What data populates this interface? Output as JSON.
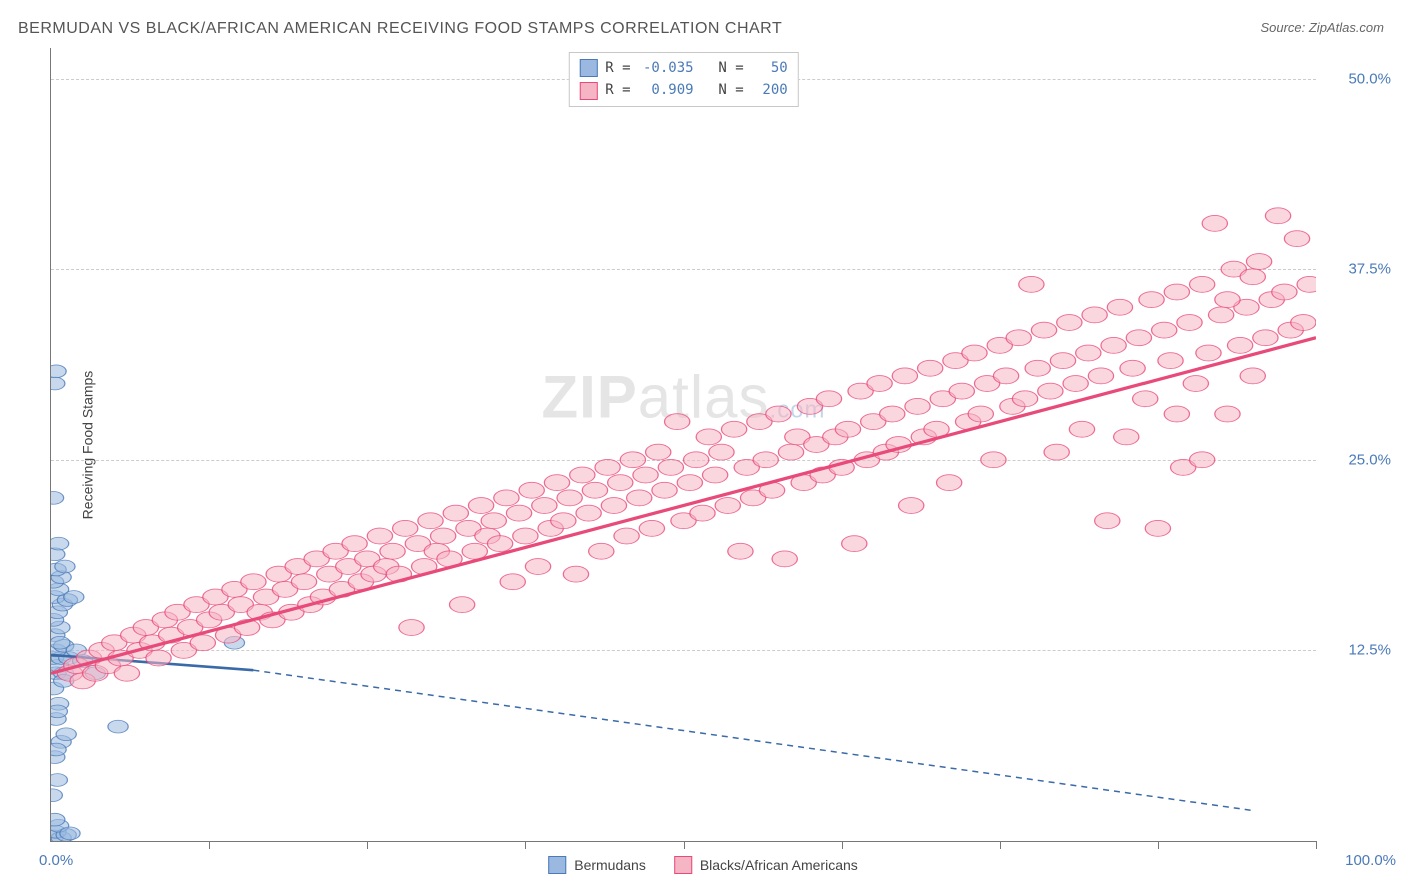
{
  "title": "BERMUDAN VS BLACK/AFRICAN AMERICAN RECEIVING FOOD STAMPS CORRELATION CHART",
  "source_prefix": "Source: ",
  "source_name": "ZipAtlas.com",
  "watermark": {
    "brand": "ZIP",
    "suffix": "atlas",
    "tld": ".com"
  },
  "chart": {
    "type": "scatter",
    "background_color": "#ffffff",
    "grid_color": "#cccccc",
    "axis_color": "#777777",
    "tick_label_color": "#4a7ab8",
    "ylabel": "Receiving Food Stamps",
    "ylabel_fontsize": 14,
    "xlim": [
      0,
      100
    ],
    "ylim": [
      0,
      52
    ],
    "x_origin_label": "0.0%",
    "x_max_label": "100.0%",
    "x_tick_positions": [
      12.5,
      25,
      37.5,
      50,
      62.5,
      75,
      87.5,
      100
    ],
    "y_ticks": [
      {
        "value": 12.5,
        "label": "12.5%"
      },
      {
        "value": 25.0,
        "label": "25.0%"
      },
      {
        "value": 37.5,
        "label": "37.5%"
      },
      {
        "value": 50.0,
        "label": "50.0%"
      }
    ],
    "series": [
      {
        "id": "bermudans",
        "label": "Bermudans",
        "fill_color": "#9bb9e0",
        "stroke_color": "#4a7ab8",
        "marker_opacity": 0.55,
        "marker_radius": 8,
        "correlation_R": "-0.035",
        "correlation_N": "50",
        "trend": {
          "solid_from": [
            0,
            12.2
          ],
          "solid_to": [
            16,
            11.2
          ],
          "dash_from": [
            16,
            11.2
          ],
          "dash_to": [
            95,
            2.0
          ],
          "line_color": "#3a6aa8",
          "line_width": 2
        },
        "points": [
          [
            0.2,
            0.3
          ],
          [
            0.8,
            0.2
          ],
          [
            0.4,
            0.6
          ],
          [
            1.2,
            0.4
          ],
          [
            0.6,
            1.0
          ],
          [
            1.5,
            0.5
          ],
          [
            0.3,
            1.4
          ],
          [
            0.1,
            3.0
          ],
          [
            0.5,
            4.0
          ],
          [
            0.3,
            5.5
          ],
          [
            0.8,
            6.5
          ],
          [
            1.2,
            7.0
          ],
          [
            0.4,
            8.0
          ],
          [
            5.3,
            7.5
          ],
          [
            0.6,
            9.0
          ],
          [
            0.2,
            10.0
          ],
          [
            0.4,
            11.0
          ],
          [
            1.0,
            11.0
          ],
          [
            3.5,
            11.0
          ],
          [
            0.6,
            11.5
          ],
          [
            0.2,
            12.0
          ],
          [
            0.8,
            12.0
          ],
          [
            1.4,
            12.0
          ],
          [
            0.4,
            12.5
          ],
          [
            1.0,
            12.8
          ],
          [
            0.3,
            13.5
          ],
          [
            0.7,
            14.0
          ],
          [
            0.2,
            14.5
          ],
          [
            0.5,
            15.0
          ],
          [
            0.9,
            15.5
          ],
          [
            0.3,
            16.0
          ],
          [
            1.3,
            15.8
          ],
          [
            0.6,
            16.5
          ],
          [
            1.8,
            16.0
          ],
          [
            0.2,
            17.0
          ],
          [
            0.8,
            17.3
          ],
          [
            0.4,
            17.8
          ],
          [
            1.1,
            18.0
          ],
          [
            0.3,
            18.8
          ],
          [
            14.5,
            13.0
          ],
          [
            0.6,
            19.5
          ],
          [
            0.2,
            22.5
          ],
          [
            0.3,
            30.0
          ],
          [
            0.4,
            30.8
          ],
          [
            2.0,
            12.5
          ],
          [
            2.5,
            11.8
          ],
          [
            0.5,
            8.5
          ],
          [
            1.0,
            10.5
          ],
          [
            0.7,
            13.0
          ],
          [
            0.4,
            6.0
          ]
        ]
      },
      {
        "id": "black_african_american",
        "label": "Blacks/African Americans",
        "fill_color": "#f5b5c4",
        "stroke_color": "#e84a7a",
        "marker_opacity": 0.55,
        "marker_radius": 10,
        "correlation_R": "0.909",
        "correlation_N": "200",
        "trend": {
          "solid_from": [
            0,
            11.0
          ],
          "solid_to": [
            100,
            33.0
          ],
          "line_color": "#e84a7a",
          "line_width": 2.5
        },
        "points": [
          [
            1.5,
            11.0
          ],
          [
            2.0,
            11.5
          ],
          [
            2.5,
            10.5
          ],
          [
            3.0,
            12.0
          ],
          [
            3.5,
            11.0
          ],
          [
            4.0,
            12.5
          ],
          [
            4.5,
            11.5
          ],
          [
            5.0,
            13.0
          ],
          [
            5.5,
            12.0
          ],
          [
            6.0,
            11.0
          ],
          [
            6.5,
            13.5
          ],
          [
            7.0,
            12.5
          ],
          [
            7.5,
            14.0
          ],
          [
            8.0,
            13.0
          ],
          [
            8.5,
            12.0
          ],
          [
            9.0,
            14.5
          ],
          [
            9.5,
            13.5
          ],
          [
            10.0,
            15.0
          ],
          [
            10.5,
            12.5
          ],
          [
            11.0,
            14.0
          ],
          [
            11.5,
            15.5
          ],
          [
            12.0,
            13.0
          ],
          [
            12.5,
            14.5
          ],
          [
            13.0,
            16.0
          ],
          [
            13.5,
            15.0
          ],
          [
            14.0,
            13.5
          ],
          [
            14.5,
            16.5
          ],
          [
            15.0,
            15.5
          ],
          [
            15.5,
            14.0
          ],
          [
            16.0,
            17.0
          ],
          [
            16.5,
            15.0
          ],
          [
            17.0,
            16.0
          ],
          [
            17.5,
            14.5
          ],
          [
            18.0,
            17.5
          ],
          [
            18.5,
            16.5
          ],
          [
            19.0,
            15.0
          ],
          [
            19.5,
            18.0
          ],
          [
            20.0,
            17.0
          ],
          [
            20.5,
            15.5
          ],
          [
            21.0,
            18.5
          ],
          [
            21.5,
            16.0
          ],
          [
            22.0,
            17.5
          ],
          [
            22.5,
            19.0
          ],
          [
            23.0,
            16.5
          ],
          [
            23.5,
            18.0
          ],
          [
            24.0,
            19.5
          ],
          [
            24.5,
            17.0
          ],
          [
            25.0,
            18.5
          ],
          [
            25.5,
            17.5
          ],
          [
            26.0,
            20.0
          ],
          [
            26.5,
            18.0
          ],
          [
            27.0,
            19.0
          ],
          [
            27.5,
            17.5
          ],
          [
            28.0,
            20.5
          ],
          [
            28.5,
            14.0
          ],
          [
            29.0,
            19.5
          ],
          [
            29.5,
            18.0
          ],
          [
            30.0,
            21.0
          ],
          [
            30.5,
            19.0
          ],
          [
            31.0,
            20.0
          ],
          [
            31.5,
            18.5
          ],
          [
            32.0,
            21.5
          ],
          [
            32.5,
            15.5
          ],
          [
            33.0,
            20.5
          ],
          [
            33.5,
            19.0
          ],
          [
            34.0,
            22.0
          ],
          [
            34.5,
            20.0
          ],
          [
            35.0,
            21.0
          ],
          [
            35.5,
            19.5
          ],
          [
            36.0,
            22.5
          ],
          [
            36.5,
            17.0
          ],
          [
            37.0,
            21.5
          ],
          [
            37.5,
            20.0
          ],
          [
            38.0,
            23.0
          ],
          [
            38.5,
            18.0
          ],
          [
            39.0,
            22.0
          ],
          [
            39.5,
            20.5
          ],
          [
            40.0,
            23.5
          ],
          [
            40.5,
            21.0
          ],
          [
            41.0,
            22.5
          ],
          [
            41.5,
            17.5
          ],
          [
            42.0,
            24.0
          ],
          [
            42.5,
            21.5
          ],
          [
            43.0,
            23.0
          ],
          [
            43.5,
            19.0
          ],
          [
            44.0,
            24.5
          ],
          [
            44.5,
            22.0
          ],
          [
            45.0,
            23.5
          ],
          [
            45.5,
            20.0
          ],
          [
            46.0,
            25.0
          ],
          [
            46.5,
            22.5
          ],
          [
            47.0,
            24.0
          ],
          [
            47.5,
            20.5
          ],
          [
            48.0,
            25.5
          ],
          [
            48.5,
            23.0
          ],
          [
            49.0,
            24.5
          ],
          [
            49.5,
            27.5
          ],
          [
            50.0,
            21.0
          ],
          [
            50.5,
            23.5
          ],
          [
            51.0,
            25.0
          ],
          [
            51.5,
            21.5
          ],
          [
            52.0,
            26.5
          ],
          [
            52.5,
            24.0
          ],
          [
            53.0,
            25.5
          ],
          [
            53.5,
            22.0
          ],
          [
            54.0,
            27.0
          ],
          [
            54.5,
            19.0
          ],
          [
            55.0,
            24.5
          ],
          [
            55.5,
            22.5
          ],
          [
            56.0,
            27.5
          ],
          [
            56.5,
            25.0
          ],
          [
            57.0,
            23.0
          ],
          [
            57.5,
            28.0
          ],
          [
            58.0,
            18.5
          ],
          [
            58.5,
            25.5
          ],
          [
            59.0,
            26.5
          ],
          [
            59.5,
            23.5
          ],
          [
            60.0,
            28.5
          ],
          [
            60.5,
            26.0
          ],
          [
            61.0,
            24.0
          ],
          [
            61.5,
            29.0
          ],
          [
            62.0,
            26.5
          ],
          [
            62.5,
            24.5
          ],
          [
            63.0,
            27.0
          ],
          [
            63.5,
            19.5
          ],
          [
            64.0,
            29.5
          ],
          [
            64.5,
            25.0
          ],
          [
            65.0,
            27.5
          ],
          [
            65.5,
            30.0
          ],
          [
            66.0,
            25.5
          ],
          [
            66.5,
            28.0
          ],
          [
            67.0,
            26.0
          ],
          [
            67.5,
            30.5
          ],
          [
            68.0,
            22.0
          ],
          [
            68.5,
            28.5
          ],
          [
            69.0,
            26.5
          ],
          [
            69.5,
            31.0
          ],
          [
            70.0,
            27.0
          ],
          [
            70.5,
            29.0
          ],
          [
            71.0,
            23.5
          ],
          [
            71.5,
            31.5
          ],
          [
            72.0,
            29.5
          ],
          [
            72.5,
            27.5
          ],
          [
            73.0,
            32.0
          ],
          [
            73.5,
            28.0
          ],
          [
            74.0,
            30.0
          ],
          [
            74.5,
            25.0
          ],
          [
            75.0,
            32.5
          ],
          [
            75.5,
            30.5
          ],
          [
            76.0,
            28.5
          ],
          [
            76.5,
            33.0
          ],
          [
            77.0,
            29.0
          ],
          [
            77.5,
            36.5
          ],
          [
            78.0,
            31.0
          ],
          [
            78.5,
            33.5
          ],
          [
            79.0,
            29.5
          ],
          [
            79.5,
            25.5
          ],
          [
            80.0,
            31.5
          ],
          [
            80.5,
            34.0
          ],
          [
            81.0,
            30.0
          ],
          [
            81.5,
            27.0
          ],
          [
            82.0,
            32.0
          ],
          [
            82.5,
            34.5
          ],
          [
            83.0,
            30.5
          ],
          [
            83.5,
            21.0
          ],
          [
            84.0,
            32.5
          ],
          [
            84.5,
            35.0
          ],
          [
            85.0,
            26.5
          ],
          [
            85.5,
            31.0
          ],
          [
            86.0,
            33.0
          ],
          [
            86.5,
            29.0
          ],
          [
            87.0,
            35.5
          ],
          [
            87.5,
            20.5
          ],
          [
            88.0,
            33.5
          ],
          [
            88.5,
            31.5
          ],
          [
            89.0,
            36.0
          ],
          [
            89.5,
            24.5
          ],
          [
            90.0,
            34.0
          ],
          [
            90.5,
            30.0
          ],
          [
            91.0,
            36.5
          ],
          [
            91.5,
            32.0
          ],
          [
            92.0,
            40.5
          ],
          [
            92.5,
            34.5
          ],
          [
            93.0,
            28.0
          ],
          [
            93.5,
            37.5
          ],
          [
            94.0,
            32.5
          ],
          [
            94.5,
            35.0
          ],
          [
            95.0,
            30.5
          ],
          [
            95.5,
            38.0
          ],
          [
            96.0,
            33.0
          ],
          [
            96.5,
            35.5
          ],
          [
            97.0,
            41.0
          ],
          [
            97.5,
            36.0
          ],
          [
            98.0,
            33.5
          ],
          [
            98.5,
            39.5
          ],
          [
            99.0,
            34.0
          ],
          [
            99.5,
            36.5
          ],
          [
            95.0,
            37.0
          ],
          [
            93.0,
            35.5
          ],
          [
            91.0,
            25.0
          ],
          [
            89.0,
            28.0
          ]
        ]
      }
    ]
  }
}
